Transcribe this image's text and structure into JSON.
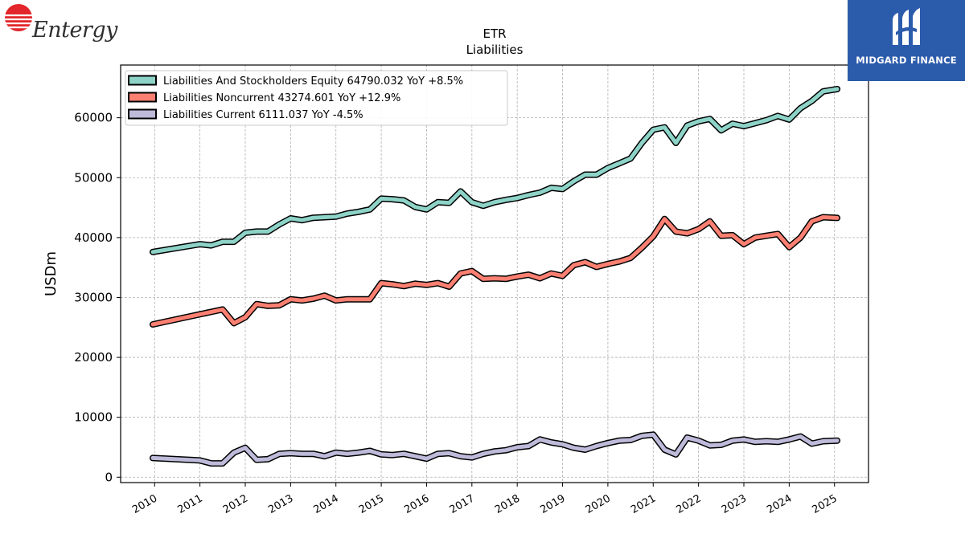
{
  "logos": {
    "left_text": "Entergy",
    "right_text": "MIDGARD FINANCE"
  },
  "chart_data": {
    "type": "line",
    "title": "ETR",
    "subtitle": "Liabilities",
    "ylabel": "USDm",
    "xlabel": "",
    "ylim": [
      -900,
      68800
    ],
    "xlim": [
      2009.25,
      2025.75
    ],
    "yticks": [
      0,
      10000,
      20000,
      30000,
      40000,
      50000,
      60000
    ],
    "xticks": [
      "2010",
      "2011",
      "2012",
      "2013",
      "2014",
      "2015",
      "2016",
      "2017",
      "2018",
      "2019",
      "2020",
      "2021",
      "2022",
      "2023",
      "2024",
      "2025"
    ],
    "grid": true,
    "legend_position": "top-left",
    "series": [
      {
        "name": "Liabilities And Stockholders Equity",
        "legend": "Liabilities And Stockholders Equity  64790.032 YoY +8.5%",
        "color": "#8dd3c7",
        "x": [
          2009.96,
          2011.0,
          2011.25,
          2011.5,
          2011.75,
          2012.0,
          2012.25,
          2012.5,
          2012.75,
          2013.0,
          2013.25,
          2013.5,
          2013.75,
          2014.0,
          2014.25,
          2014.5,
          2014.75,
          2015.0,
          2015.25,
          2015.5,
          2015.75,
          2016.0,
          2016.25,
          2016.5,
          2016.75,
          2017.0,
          2017.25,
          2017.5,
          2017.75,
          2018.0,
          2018.25,
          2018.5,
          2018.75,
          2019.0,
          2019.25,
          2019.5,
          2019.75,
          2020.0,
          2020.25,
          2020.5,
          2020.75,
          2021.0,
          2021.25,
          2021.5,
          2021.75,
          2022.0,
          2022.25,
          2022.5,
          2022.75,
          2023.0,
          2023.25,
          2023.5,
          2023.75,
          2024.0,
          2024.25,
          2024.5,
          2024.75,
          2025.06
        ],
        "y": [
          37600,
          38900,
          38700,
          39300,
          39300,
          40800,
          41000,
          41000,
          42200,
          43200,
          42900,
          43300,
          43400,
          43500,
          44000,
          44300,
          44700,
          46500,
          46400,
          46200,
          45100,
          44700,
          45900,
          45800,
          47700,
          45900,
          45300,
          45900,
          46300,
          46600,
          47100,
          47500,
          48300,
          48100,
          49400,
          50500,
          50500,
          51600,
          52400,
          53200,
          55800,
          58000,
          58400,
          55800,
          58700,
          59400,
          59800,
          57900,
          59000,
          58600,
          59100,
          59600,
          60300,
          59700,
          61600,
          62800,
          64400,
          64790
        ]
      },
      {
        "name": "Liabilities Noncurrent",
        "legend": "Liabilities Noncurrent  43274.601 YoY +12.9%",
        "color": "#fb8072",
        "x": [
          2009.96,
          2011.0,
          2011.25,
          2011.5,
          2011.75,
          2012.0,
          2012.25,
          2012.5,
          2012.75,
          2013.0,
          2013.25,
          2013.5,
          2013.75,
          2014.0,
          2014.25,
          2014.5,
          2014.75,
          2015.0,
          2015.25,
          2015.5,
          2015.75,
          2016.0,
          2016.25,
          2016.5,
          2016.75,
          2017.0,
          2017.25,
          2017.5,
          2017.75,
          2018.0,
          2018.25,
          2018.5,
          2018.75,
          2019.0,
          2019.25,
          2019.5,
          2019.75,
          2020.0,
          2020.25,
          2020.5,
          2020.75,
          2021.0,
          2021.25,
          2021.5,
          2021.75,
          2022.0,
          2022.25,
          2022.5,
          2022.75,
          2023.0,
          2023.25,
          2023.5,
          2023.75,
          2024.0,
          2024.25,
          2024.5,
          2024.75,
          2025.06
        ],
        "y": [
          25500,
          27200,
          27600,
          28000,
          25700,
          26700,
          28900,
          28600,
          28700,
          29700,
          29500,
          29800,
          30300,
          29500,
          29700,
          29700,
          29700,
          32400,
          32200,
          31900,
          32300,
          32100,
          32400,
          31800,
          34000,
          34400,
          33100,
          33200,
          33100,
          33500,
          33800,
          33200,
          34000,
          33600,
          35400,
          35900,
          35100,
          35600,
          36000,
          36600,
          38300,
          40200,
          43100,
          41000,
          40700,
          41400,
          42700,
          40300,
          40400,
          38900,
          40000,
          40300,
          40600,
          38400,
          40000,
          42700,
          43400,
          43274
        ]
      },
      {
        "name": "Liabilities Current",
        "legend": "Liabilities Current  6111.037 YoY -4.5%",
        "color": "#bebada",
        "x": [
          2009.96,
          2011.0,
          2011.25,
          2011.5,
          2011.75,
          2012.0,
          2012.25,
          2012.5,
          2012.75,
          2013.0,
          2013.25,
          2013.5,
          2013.75,
          2014.0,
          2014.25,
          2014.5,
          2014.75,
          2015.0,
          2015.25,
          2015.5,
          2015.75,
          2016.0,
          2016.25,
          2016.5,
          2016.75,
          2017.0,
          2017.25,
          2017.5,
          2017.75,
          2018.0,
          2018.25,
          2018.5,
          2018.75,
          2019.0,
          2019.25,
          2019.5,
          2019.75,
          2020.0,
          2020.25,
          2020.5,
          2020.75,
          2021.0,
          2021.25,
          2021.5,
          2021.75,
          2022.0,
          2022.25,
          2022.5,
          2022.75,
          2023.0,
          2023.25,
          2023.5,
          2023.75,
          2024.0,
          2024.25,
          2024.5,
          2024.75,
          2025.06
        ],
        "y": [
          3200,
          2800,
          2300,
          2300,
          4100,
          4900,
          2900,
          3000,
          3900,
          4000,
          3900,
          3900,
          3500,
          4100,
          3900,
          4100,
          4400,
          3800,
          3700,
          3900,
          3500,
          3100,
          3900,
          4000,
          3500,
          3300,
          3900,
          4300,
          4500,
          5000,
          5200,
          6300,
          5800,
          5500,
          4900,
          4600,
          5200,
          5700,
          6100,
          6200,
          6900,
          7100,
          4600,
          3800,
          6600,
          6100,
          5300,
          5400,
          6100,
          6300,
          5900,
          6000,
          5900,
          6300,
          6800,
          5600,
          6000,
          6111
        ]
      }
    ]
  }
}
